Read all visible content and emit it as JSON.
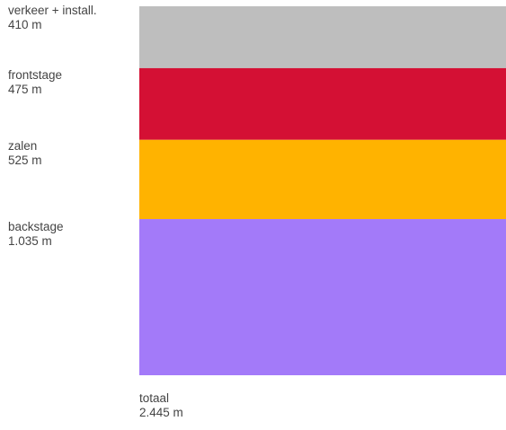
{
  "chart_data": {
    "type": "bar",
    "stacked": true,
    "unit": "m",
    "segments": [
      {
        "name": "verkeer + install.",
        "value_label": "410 m",
        "value": 410,
        "color": "#BEBEBE"
      },
      {
        "name": "frontstage",
        "value_label": "475 m",
        "value": 475,
        "color": "#D41034"
      },
      {
        "name": "zalen",
        "value_label": "525 m",
        "value": 525,
        "color": "#FFB300"
      },
      {
        "name": "backstage",
        "value_label": "1.035 m",
        "value": 1035,
        "color": "#A37AF9"
      }
    ],
    "total": {
      "name": "totaal",
      "value_label": "2.445 m",
      "value": 2445
    }
  }
}
